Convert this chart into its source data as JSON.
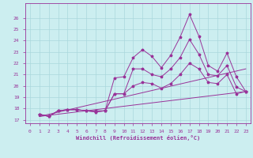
{
  "xlabel": "Windchill (Refroidissement éolien,°C)",
  "bg_color": "#cceef0",
  "grid_color": "#aad8dc",
  "line_color": "#993399",
  "ylim": [
    17,
    27
  ],
  "xlim": [
    -0.5,
    23.5
  ],
  "yticks": [
    17,
    18,
    19,
    20,
    21,
    22,
    23,
    24,
    25,
    26
  ],
  "xticks": [
    0,
    1,
    2,
    3,
    4,
    5,
    6,
    7,
    8,
    9,
    10,
    11,
    12,
    13,
    14,
    15,
    16,
    17,
    18,
    19,
    20,
    21,
    22,
    23
  ],
  "series": {
    "line_jagged": [
      17.5,
      17.3,
      17.8,
      17.9,
      17.9,
      17.8,
      17.8,
      17.8,
      20.7,
      20.8,
      22.5,
      23.2,
      22.6,
      21.6,
      22.7,
      24.3,
      26.3,
      24.4,
      21.8,
      21.3,
      22.9,
      20.8,
      19.5
    ],
    "line_mid1": [
      17.5,
      17.3,
      17.8,
      17.9,
      17.9,
      17.8,
      17.7,
      17.8,
      19.3,
      19.3,
      21.5,
      21.5,
      21.0,
      20.8,
      21.5,
      22.5,
      24.1,
      22.8,
      21.0,
      20.9,
      21.8,
      19.9,
      19.5
    ],
    "line_mid2": [
      17.5,
      17.3,
      17.8,
      17.9,
      17.9,
      17.8,
      17.7,
      17.8,
      19.3,
      19.3,
      20.0,
      20.3,
      20.2,
      19.8,
      20.2,
      21.0,
      22.0,
      21.5,
      20.3,
      20.2,
      21.0,
      19.3,
      19.5
    ],
    "line_straight1": [
      [
        1,
        17.3
      ],
      [
        23,
        21.5
      ]
    ],
    "line_straight2": [
      [
        1,
        17.3
      ],
      [
        23,
        19.5
      ]
    ]
  },
  "x_start": 1
}
